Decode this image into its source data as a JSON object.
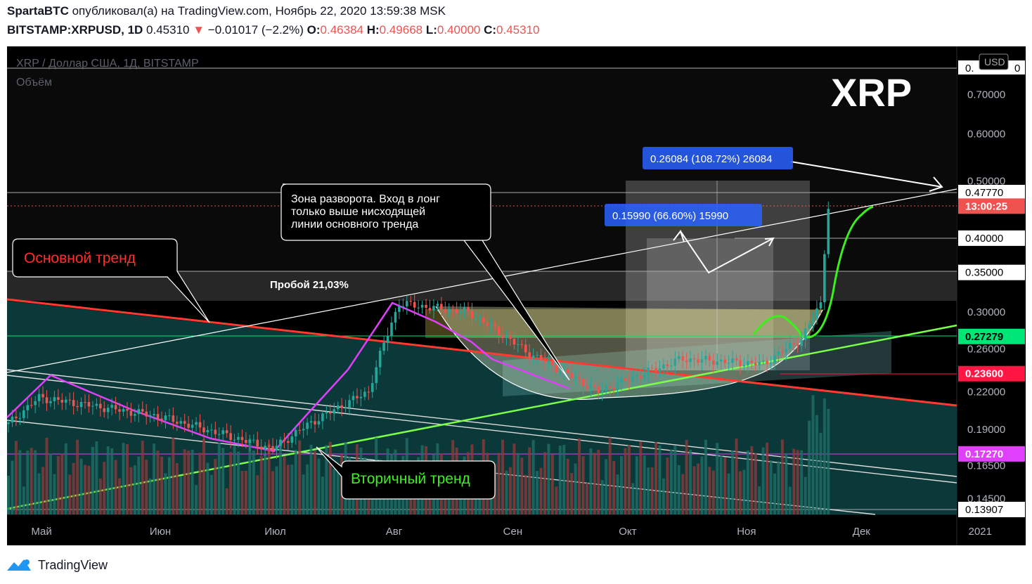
{
  "header": {
    "author": "SpartaBTC",
    "published_text": "опубликовал(а) на TradingView.com, Ноябрь 22, 2020 13:59:38 MSK",
    "symbol": "BITSTAMP:XRPUSD, 1D",
    "last": "0.45310",
    "down_arrow": "▼",
    "change": "−0.01017 (−2.2%)",
    "o_label": "O:",
    "o": "0.46384",
    "h_label": "H:",
    "h": "0.49668",
    "l_label": "L:",
    "l": "0.40000",
    "c_label": "C:",
    "c": "0.45310"
  },
  "chart_data": {
    "type": "candlestick",
    "title": "XRP / Доллар США, 1Д, BITSTAMP",
    "volume_label": "Объём",
    "big_label": "XRP",
    "currency": "USD",
    "x_ticks": [
      "Май",
      "Июн",
      "Июл",
      "Авг",
      "Сен",
      "Окт",
      "Ноя",
      "Дек",
      "2021"
    ],
    "y_ticks": [
      "0.70000",
      "0.60000",
      "0.50000",
      "0.35000",
      "0.30000",
      "0.26000",
      "0.22000",
      "0.19000",
      "0.16500",
      "0.14500"
    ],
    "y_range": [
      0.135,
      0.82
    ],
    "price_markers": [
      {
        "label": "0.47770",
        "value": 0.4777,
        "bg": "#ffffff",
        "fg": "#000000"
      },
      {
        "label": "13:00:25",
        "value": 0.4531,
        "bg": "#ef5350",
        "fg": "#ffffff"
      },
      {
        "label": "0.40000",
        "value": 0.4,
        "bg": "#ffffff",
        "fg": "#000000"
      },
      {
        "label": "0.35000",
        "value": 0.35,
        "bg": "#ffffff",
        "fg": "#000000"
      },
      {
        "label": "0.27279",
        "value": 0.27279,
        "bg": "#00e676",
        "fg": "#000000"
      },
      {
        "label": "0.23600",
        "value": 0.236,
        "bg": "#ff1744",
        "fg": "#ffffff"
      },
      {
        "label": "0.17270",
        "value": 0.1727,
        "bg": "#e040fb",
        "fg": "#ffffff"
      },
      {
        "label": "0.13907",
        "value": 0.13907,
        "bg": "#ffffff",
        "fg": "#000000"
      }
    ],
    "top_marker_label": "0.",
    "top_marker_label_right": "0",
    "annotations": {
      "main_trend": "Основной тренд",
      "secondary_trend": "Вторичный тренд",
      "breakout": "Пробой 21,03%",
      "reversal_zone": [
        "Зона разворота. Вход в лонг",
        "только выше нисходящей",
        "линии основного тренда"
      ],
      "measure1": "0.26084 (108.72%) 26084",
      "measure2": "0.15990 (66.60%) 15990"
    },
    "closes_key_points": [
      {
        "date": "2020-04-22",
        "close": 0.194
      },
      {
        "date": "2020-04-30",
        "close": 0.215
      },
      {
        "date": "2020-05-31",
        "close": 0.2
      },
      {
        "date": "2020-06-30",
        "close": 0.176
      },
      {
        "date": "2020-07-10",
        "close": 0.195
      },
      {
        "date": "2020-07-25",
        "close": 0.22
      },
      {
        "date": "2020-08-02",
        "close": 0.31
      },
      {
        "date": "2020-08-20",
        "close": 0.3
      },
      {
        "date": "2020-09-05",
        "close": 0.255
      },
      {
        "date": "2020-09-23",
        "close": 0.22
      },
      {
        "date": "2020-10-15",
        "close": 0.25
      },
      {
        "date": "2020-11-05",
        "close": 0.245
      },
      {
        "date": "2020-11-15",
        "close": 0.27
      },
      {
        "date": "2020-11-20",
        "close": 0.31
      },
      {
        "date": "2020-11-22",
        "close": 0.4531
      }
    ]
  },
  "footer": {
    "brand": "TradingView"
  }
}
